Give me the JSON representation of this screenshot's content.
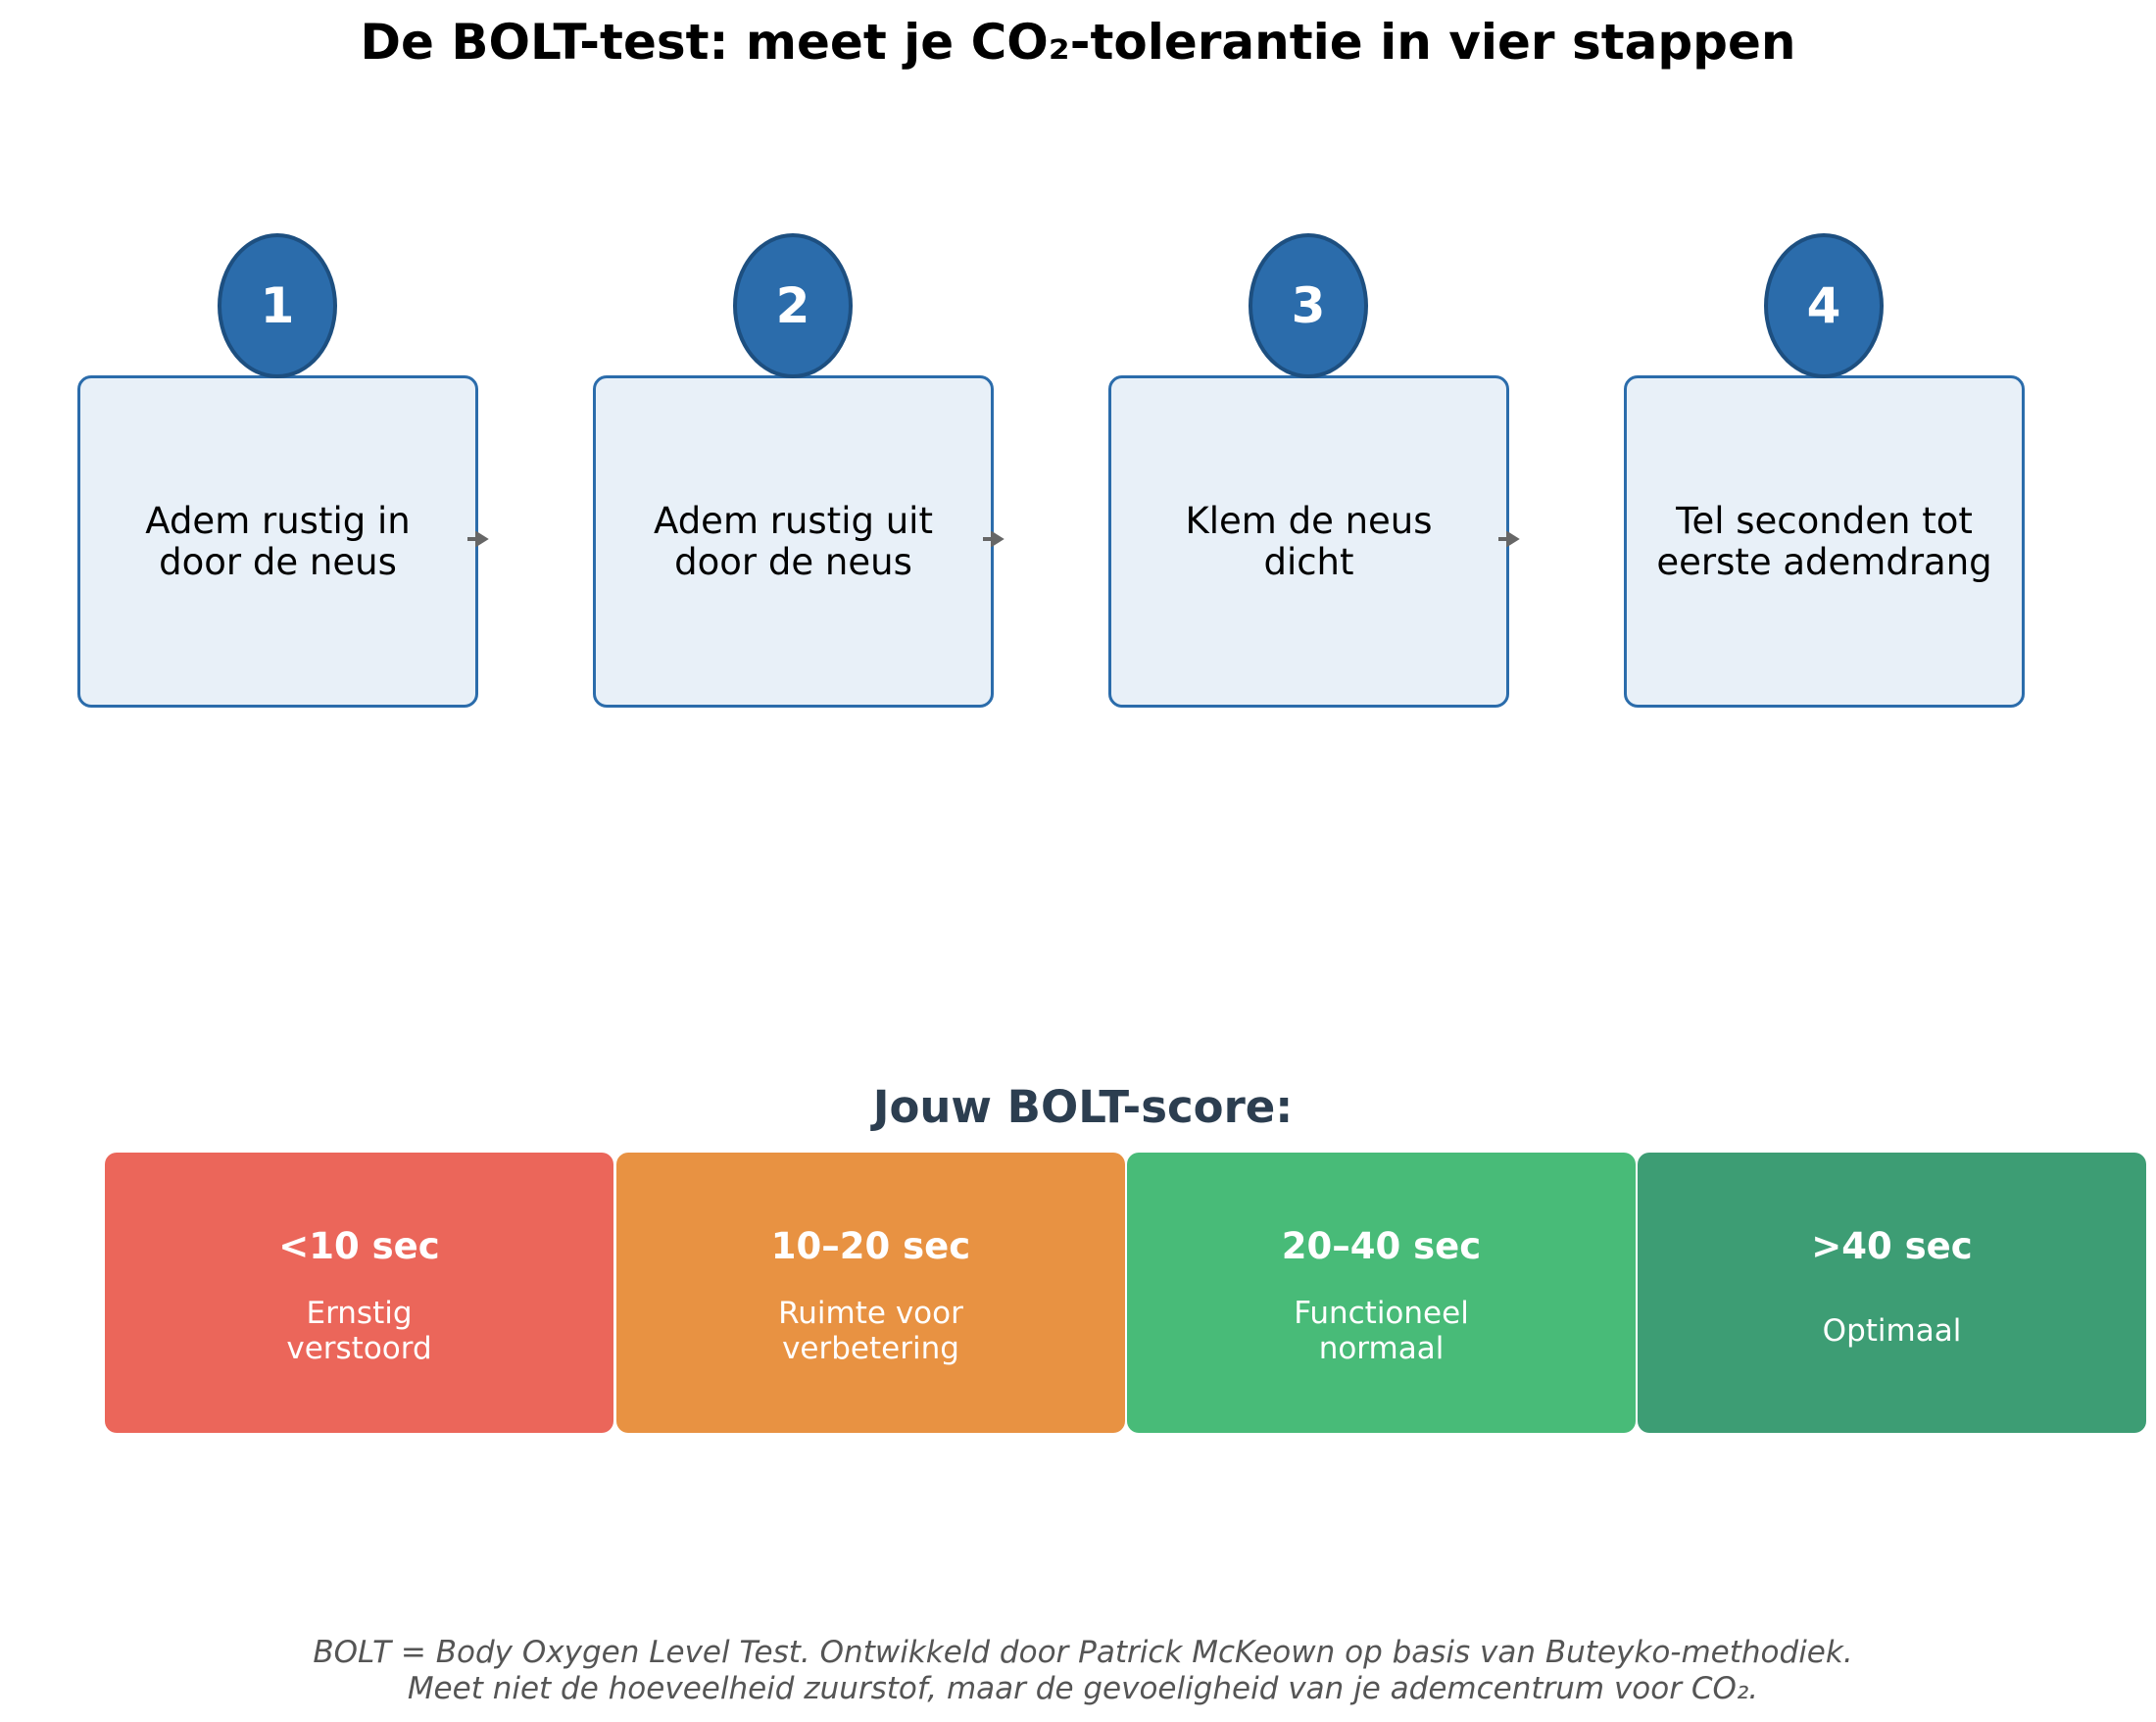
{
  "title": "De BOLT-test: meet je CO₂-tolerantie in vier stappen",
  "steps": [
    {
      "number": "1",
      "text": "Adem rustig in door de neus"
    },
    {
      "number": "2",
      "text": "Adem rustig uit door de neus"
    },
    {
      "number": "3",
      "text": "Klem de neus dicht"
    },
    {
      "number": "4",
      "text": "Tel seconden tot eerste ademdrang"
    }
  ],
  "score_title": "Jouw BOLT-score:",
  "scores": [
    {
      "range": "<10 sec",
      "desc": "Ernstig verstoord",
      "color": "#eb665a"
    },
    {
      "range": "10–20 sec",
      "desc": "Ruimte voor verbetering",
      "color": "#e89242"
    },
    {
      "range": "20–40 sec",
      "desc": "Functioneel normaal",
      "color": "#48bb78"
    },
    {
      "range": ">40 sec",
      "desc": "Optimaal",
      "color": "#3d9d74"
    }
  ],
  "footer": {
    "line1": "BOLT = Body Oxygen Level Test. Ontwikkeld door Patrick McKeown op basis van Buteyko-methodiek.",
    "line2": "Meet niet de hoeveelheid zuurstof, maar de gevoeligheid van je ademcentrum voor CO₂."
  },
  "colors": {
    "step_fill": "#e8f0f8",
    "step_border": "#2b6cab",
    "circle": "#2b6cab",
    "arrow": "#666666"
  }
}
